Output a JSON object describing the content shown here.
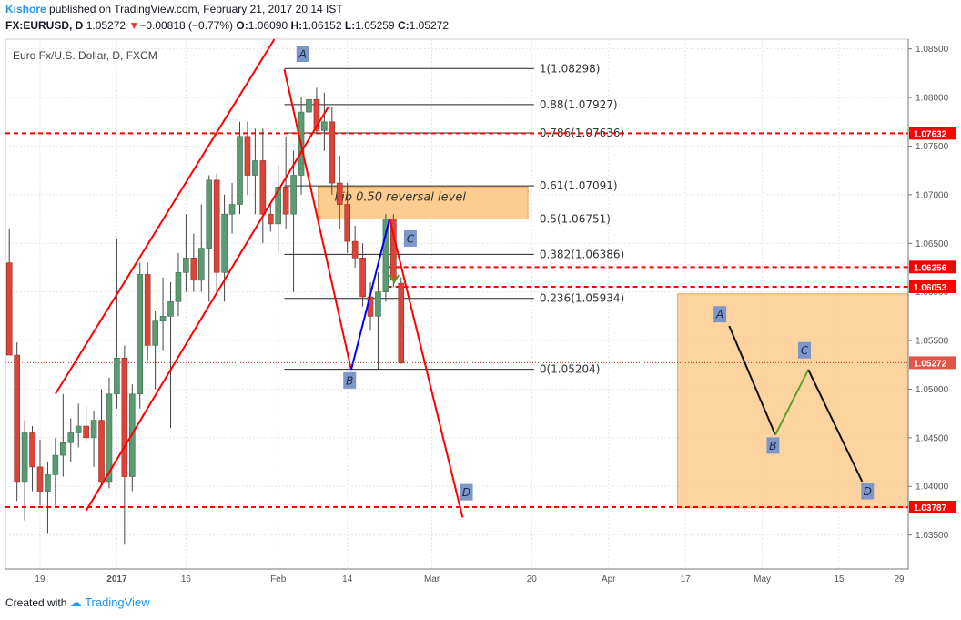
{
  "header": {
    "author": "Kishore",
    "published": "published on TradingView.com, February 21, 2017 20:14 IST",
    "symbol": "FX:EURUSD, D",
    "last": "1.05272",
    "change": "−0.00818 (−0.77%)",
    "o_label": "O:",
    "o": "1.06090",
    "h_label": "H:",
    "h": "1.06152",
    "l_label": "L:",
    "l": "1.05259",
    "c_label": "C:",
    "c": "1.05272"
  },
  "footer": {
    "created": "Created with",
    "brand": "TradingView"
  },
  "colors": {
    "up": "#5b9a72",
    "down": "#d9453b",
    "red": "#ff0000",
    "blue": "#0000ff",
    "green": "#5aa02c",
    "box": "#fdcd8f"
  },
  "chart_data": {
    "type": "candlestick",
    "title": "Euro Fx/U.S. Dollar, D, FXCM",
    "ylim": [
      1.0315,
      1.086
    ],
    "xlim": [
      -0.5,
      117
    ],
    "y_ticks": [
      "1.03500",
      "1.04000",
      "1.04500",
      "1.05000",
      "1.05500",
      "1.06000",
      "1.06500",
      "1.07000",
      "1.07500",
      "1.08000",
      "1.08500"
    ],
    "x_ticks": [
      {
        "label": "19",
        "index": 4
      },
      {
        "label": "2017",
        "index": 14
      },
      {
        "label": "16",
        "index": 23
      },
      {
        "label": "Feb",
        "index": 35
      },
      {
        "label": "14",
        "index": 44
      },
      {
        "label": "Mar",
        "index": 55
      },
      {
        "label": "20",
        "index": 68
      },
      {
        "label": "Apr",
        "index": 78
      },
      {
        "label": "17",
        "index": 88
      },
      {
        "label": "May",
        "index": 98
      },
      {
        "label": "15",
        "index": 108
      },
      {
        "label": "29",
        "index": 118
      }
    ],
    "candles": [
      {
        "o": 1.063,
        "h": 1.0665,
        "l": 1.054,
        "c": 1.0535
      },
      {
        "o": 1.0535,
        "h": 1.0548,
        "l": 1.0385,
        "c": 1.0405
      },
      {
        "o": 1.0405,
        "h": 1.0468,
        "l": 1.0365,
        "c": 1.0455
      },
      {
        "o": 1.0455,
        "h": 1.0462,
        "l": 1.0395,
        "c": 1.042
      },
      {
        "o": 1.042,
        "h": 1.0448,
        "l": 1.038,
        "c": 1.0395
      },
      {
        "o": 1.0395,
        "h": 1.0425,
        "l": 1.0352,
        "c": 1.0412
      },
      {
        "o": 1.0412,
        "h": 1.045,
        "l": 1.038,
        "c": 1.0432
      },
      {
        "o": 1.0432,
        "h": 1.0495,
        "l": 1.041,
        "c": 1.0445
      },
      {
        "o": 1.0445,
        "h": 1.047,
        "l": 1.0425,
        "c": 1.0455
      },
      {
        "o": 1.0455,
        "h": 1.0485,
        "l": 1.044,
        "c": 1.0462
      },
      {
        "o": 1.0462,
        "h": 1.0482,
        "l": 1.0445,
        "c": 1.045
      },
      {
        "o": 1.045,
        "h": 1.0478,
        "l": 1.042,
        "c": 1.0468
      },
      {
        "o": 1.0468,
        "h": 1.05,
        "l": 1.04,
        "c": 1.0405
      },
      {
        "o": 1.0405,
        "h": 1.0512,
        "l": 1.0398,
        "c": 1.0495
      },
      {
        "o": 1.0495,
        "h": 1.0655,
        "l": 1.048,
        "c": 1.0532
      },
      {
        "o": 1.0532,
        "h": 1.0545,
        "l": 1.034,
        "c": 1.041
      },
      {
        "o": 1.041,
        "h": 1.0505,
        "l": 1.0395,
        "c": 1.0495
      },
      {
        "o": 1.0495,
        "h": 1.063,
        "l": 1.048,
        "c": 1.0618
      },
      {
        "o": 1.0618,
        "h": 1.063,
        "l": 1.053,
        "c": 1.0545
      },
      {
        "o": 1.0545,
        "h": 1.058,
        "l": 1.05,
        "c": 1.057
      },
      {
        "o": 1.057,
        "h": 1.0615,
        "l": 1.054,
        "c": 1.0575
      },
      {
        "o": 1.0575,
        "h": 1.061,
        "l": 1.046,
        "c": 1.059
      },
      {
        "o": 1.059,
        "h": 1.064,
        "l": 1.0575,
        "c": 1.062
      },
      {
        "o": 1.062,
        "h": 1.068,
        "l": 1.06,
        "c": 1.0635
      },
      {
        "o": 1.0635,
        "h": 1.066,
        "l": 1.06,
        "c": 1.0612
      },
      {
        "o": 1.0612,
        "h": 1.069,
        "l": 1.06,
        "c": 1.0645
      },
      {
        "o": 1.0645,
        "h": 1.072,
        "l": 1.059,
        "c": 1.0715
      },
      {
        "o": 1.0715,
        "h": 1.0722,
        "l": 1.06,
        "c": 1.062
      },
      {
        "o": 1.062,
        "h": 1.07,
        "l": 1.059,
        "c": 1.068
      },
      {
        "o": 1.068,
        "h": 1.0712,
        "l": 1.066,
        "c": 1.069
      },
      {
        "o": 1.069,
        "h": 1.0775,
        "l": 1.068,
        "c": 1.076
      },
      {
        "o": 1.076,
        "h": 1.0775,
        "l": 1.07,
        "c": 1.072
      },
      {
        "o": 1.072,
        "h": 1.0768,
        "l": 1.068,
        "c": 1.0735
      },
      {
        "o": 1.0735,
        "h": 1.0768,
        "l": 1.065,
        "c": 1.068
      },
      {
        "o": 1.068,
        "h": 1.069,
        "l": 1.0662,
        "c": 1.067
      },
      {
        "o": 1.067,
        "h": 1.073,
        "l": 1.064,
        "c": 1.0708
      },
      {
        "o": 1.0708,
        "h": 1.076,
        "l": 1.0665,
        "c": 1.068
      },
      {
        "o": 1.068,
        "h": 1.0745,
        "l": 1.06,
        "c": 1.072
      },
      {
        "o": 1.072,
        "h": 1.08,
        "l": 1.07,
        "c": 1.0785
      },
      {
        "o": 1.0785,
        "h": 1.0829,
        "l": 1.0745,
        "c": 1.0798
      },
      {
        "o": 1.0798,
        "h": 1.081,
        "l": 1.0762,
        "c": 1.0766
      },
      {
        "o": 1.0766,
        "h": 1.0805,
        "l": 1.0745,
        "c": 1.0775
      },
      {
        "o": 1.0775,
        "h": 1.079,
        "l": 1.07,
        "c": 1.0712
      },
      {
        "o": 1.0712,
        "h": 1.074,
        "l": 1.0665,
        "c": 1.069
      },
      {
        "o": 1.069,
        "h": 1.0712,
        "l": 1.064,
        "c": 1.0652
      },
      {
        "o": 1.0652,
        "h": 1.0668,
        "l": 1.0625,
        "c": 1.0635
      },
      {
        "o": 1.0635,
        "h": 1.065,
        "l": 1.0585,
        "c": 1.0595
      },
      {
        "o": 1.0595,
        "h": 1.061,
        "l": 1.056,
        "c": 1.0575
      },
      {
        "o": 1.0575,
        "h": 1.062,
        "l": 1.052,
        "c": 1.06
      },
      {
        "o": 1.06,
        "h": 1.068,
        "l": 1.059,
        "c": 1.0675
      },
      {
        "o": 1.0675,
        "h": 1.068,
        "l": 1.0605,
        "c": 1.0612
      },
      {
        "o": 1.0609,
        "h": 1.0615,
        "l": 1.0526,
        "c": 1.0527
      }
    ],
    "fibonacci": [
      {
        "ratio": "1",
        "price": 1.08298,
        "label": "1(1.08298)"
      },
      {
        "ratio": "0.88",
        "price": 1.07927,
        "label": "0.88(1.07927)"
      },
      {
        "ratio": "0.786",
        "price": 1.07636,
        "label": "0.786(1.07636)"
      },
      {
        "ratio": "0.61",
        "price": 1.07091,
        "label": "0.61(1.07091)"
      },
      {
        "ratio": "0.5",
        "price": 1.06751,
        "label": "0.5(1.06751)"
      },
      {
        "ratio": "0.382",
        "price": 1.06386,
        "label": "0.382(1.06386)"
      },
      {
        "ratio": "0.236",
        "price": 1.05934,
        "label": "0.236(1.05934)"
      },
      {
        "ratio": "0",
        "price": 1.05204,
        "label": "0(1.05204)"
      }
    ],
    "horizontal_levels": [
      {
        "price": 1.07632,
        "label": "1.07632"
      },
      {
        "price": 1.06256,
        "label": "1.06256"
      },
      {
        "price": 1.06053,
        "label": "1.06053"
      },
      {
        "price": 1.03787,
        "label": "1.03787"
      }
    ],
    "last_price": {
      "price": 1.05272,
      "label": "1.05272"
    },
    "annotation": {
      "text": "Fib 0.50 reversal level",
      "from": {
        "i": 40.2,
        "p": 1.0708
      },
      "to": {
        "i": 67.5,
        "p": 1.0675
      }
    },
    "channel": [
      {
        "from": {
          "i": 6,
          "p": 1.0495
        },
        "to": {
          "i": 34.5,
          "p": 1.086
        }
      },
      {
        "from": {
          "i": 10,
          "p": 1.0375
        },
        "to": {
          "i": 41.5,
          "p": 1.079
        }
      }
    ],
    "wave_lines": [
      {
        "from": {
          "i": 35.8,
          "p": 1.0829
        },
        "to": {
          "i": 44.5,
          "p": 1.052
        },
        "color": "red"
      },
      {
        "from": {
          "i": 44.5,
          "p": 1.052
        },
        "to": {
          "i": 49.5,
          "p": 1.0675
        },
        "color": "blue"
      },
      {
        "from": {
          "i": 49.5,
          "p": 1.0675
        },
        "to": {
          "i": 59,
          "p": 1.0368
        },
        "color": "red"
      }
    ],
    "wave_labels": [
      {
        "text": "A",
        "i": 38.2,
        "p": 1.0845
      },
      {
        "text": "B",
        "i": 44.3,
        "p": 1.0509
      },
      {
        "text": "C",
        "i": 52.2,
        "p": 1.0655
      },
      {
        "text": "D",
        "i": 59.5,
        "p": 1.0394
      }
    ],
    "projection_box": {
      "from": {
        "i": 87,
        "p": 1.0598
      },
      "to": {
        "i": 117,
        "p": 1.0378
      }
    },
    "projection_lines": [
      {
        "from": {
          "i": 93.7,
          "p": 1.0565
        },
        "to": {
          "i": 99.7,
          "p": 1.0453
        },
        "color": "black"
      },
      {
        "from": {
          "i": 99.7,
          "p": 1.0453
        },
        "to": {
          "i": 104,
          "p": 1.052
        },
        "color": "green"
      },
      {
        "from": {
          "i": 104,
          "p": 1.052
        },
        "to": {
          "i": 111,
          "p": 1.0405
        },
        "color": "black"
      }
    ],
    "projection_labels": [
      {
        "text": "A",
        "i": 92.5,
        "p": 1.0577
      },
      {
        "text": "B",
        "i": 99.4,
        "p": 1.0442
      },
      {
        "text": "C",
        "i": 103.5,
        "p": 1.054
      },
      {
        "text": "D",
        "i": 111.7,
        "p": 1.0395
      }
    ]
  }
}
